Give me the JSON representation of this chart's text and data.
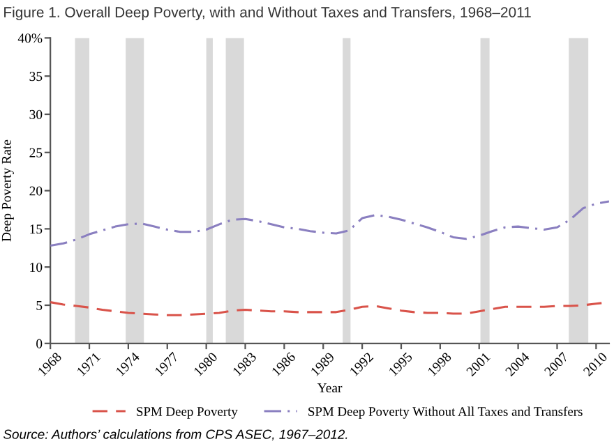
{
  "chart_data": {
    "type": "line",
    "title": "Figure 1. Overall Deep Poverty, with and Without Taxes and Transfers, 1968–2011",
    "xlabel": "Year",
    "ylabel": "Deep Poverty Rate",
    "x": [
      1968,
      1969,
      1970,
      1971,
      1972,
      1973,
      1974,
      1975,
      1976,
      1977,
      1978,
      1979,
      1980,
      1981,
      1982,
      1983,
      1984,
      1985,
      1986,
      1987,
      1988,
      1989,
      1990,
      1991,
      1992,
      1993,
      1994,
      1995,
      1996,
      1997,
      1998,
      1999,
      2000,
      2001,
      2002,
      2003,
      2004,
      2005,
      2006,
      2007,
      2008,
      2009,
      2010,
      2011
    ],
    "series": [
      {
        "name": "SPM Deep Poverty",
        "color": "#d9534a",
        "line_style": "dashed",
        "values": [
          5.4,
          5.1,
          4.9,
          4.7,
          4.4,
          4.2,
          4.0,
          3.9,
          3.8,
          3.7,
          3.7,
          3.8,
          3.9,
          4.0,
          4.3,
          4.4,
          4.3,
          4.2,
          4.2,
          4.1,
          4.1,
          4.1,
          4.1,
          4.4,
          4.8,
          4.9,
          4.6,
          4.3,
          4.1,
          4.0,
          4.0,
          3.9,
          3.9,
          4.2,
          4.5,
          4.8,
          4.8,
          4.8,
          4.8,
          4.9,
          4.9,
          5.0,
          5.2,
          5.4
        ]
      },
      {
        "name": "SPM Deep Poverty Without All Taxes and Transfers",
        "color": "#8a7fc0",
        "line_style": "dashdot",
        "values": [
          12.8,
          13.1,
          13.6,
          14.3,
          14.8,
          15.3,
          15.6,
          15.7,
          15.3,
          14.9,
          14.6,
          14.6,
          14.9,
          15.6,
          16.2,
          16.3,
          16.0,
          15.6,
          15.2,
          15.0,
          14.7,
          14.5,
          14.4,
          14.8,
          16.4,
          16.8,
          16.6,
          16.2,
          15.7,
          15.2,
          14.6,
          13.9,
          13.7,
          14.1,
          14.7,
          15.2,
          15.3,
          15.1,
          14.9,
          15.2,
          16.2,
          17.7,
          18.3,
          18.6
        ]
      }
    ],
    "bands": [
      {
        "axis": "x",
        "from": 1969.9,
        "to": 1971.0,
        "color": "#d9d9d9"
      },
      {
        "axis": "x",
        "from": 1973.8,
        "to": 1975.2,
        "color": "#d9d9d9"
      },
      {
        "axis": "x",
        "from": 1980.0,
        "to": 1980.5,
        "color": "#d9d9d9"
      },
      {
        "axis": "x",
        "from": 1981.5,
        "to": 1982.9,
        "color": "#d9d9d9"
      },
      {
        "axis": "x",
        "from": 1990.5,
        "to": 1991.1,
        "color": "#d9d9d9"
      },
      {
        "axis": "x",
        "from": 2001.1,
        "to": 2001.8,
        "color": "#d9d9d9"
      },
      {
        "axis": "x",
        "from": 2007.9,
        "to": 2009.4,
        "color": "#d9d9d9"
      }
    ],
    "xlim": [
      1968,
      2011
    ],
    "xticks": [
      1968,
      1971,
      1974,
      1977,
      1980,
      1983,
      1986,
      1989,
      1992,
      1995,
      1998,
      2001,
      2004,
      2007,
      2010
    ],
    "ylim": [
      0,
      40
    ],
    "yticks": [
      0,
      5,
      10,
      15,
      20,
      25,
      30,
      35,
      {
        "value": 40,
        "label": "40%"
      }
    ],
    "grid": false,
    "legend": "bottom",
    "annotations": [
      "Source: Authors’ calculations from CPS ASEC, 1967–2012."
    ]
  }
}
